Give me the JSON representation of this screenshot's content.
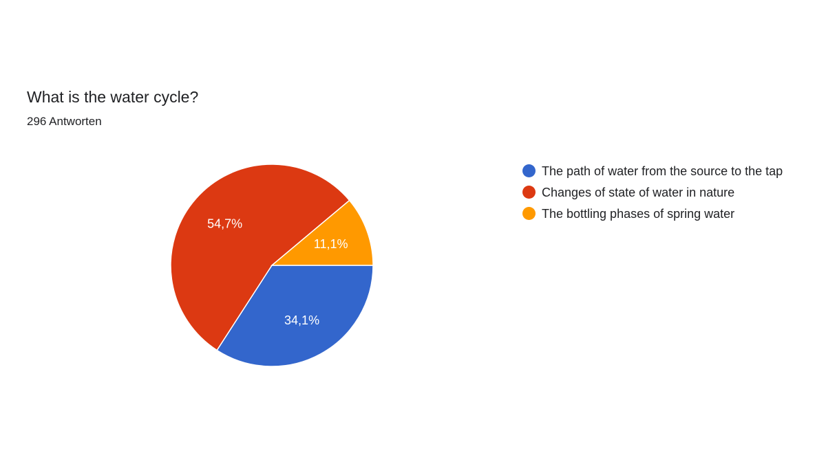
{
  "title": "What is the water cycle?",
  "subtitle": "296 Antworten",
  "chart_data": {
    "type": "pie",
    "title": "What is the water cycle?",
    "subtitle": "296 Antworten",
    "legend_position": "right",
    "slices": [
      {
        "label": "The path of water from the source to the tap",
        "value": 34.1,
        "display": "34,1%",
        "color": "#3366cc"
      },
      {
        "label": "Changes of state of water in nature",
        "value": 54.7,
        "display": "54,7%",
        "color": "#dc3912"
      },
      {
        "label": "The bottling phases of spring water",
        "value": 11.1,
        "display": "11,1%",
        "color": "#ff9900"
      }
    ]
  }
}
